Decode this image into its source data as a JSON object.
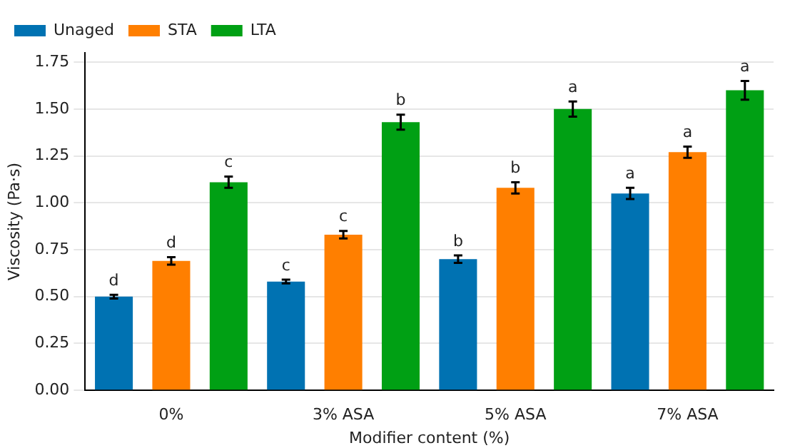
{
  "chart_data": {
    "type": "bar",
    "xlabel": "Modifier content (%)",
    "ylabel": "Viscosity (Pa·s)",
    "categories": [
      "0%",
      "3% ASA",
      "5% ASA",
      "7% ASA"
    ],
    "series": [
      {
        "name": "Unaged",
        "color": "#0072b2",
        "values": [
          0.5,
          0.58,
          0.7,
          1.05
        ],
        "errors": [
          0.01,
          0.01,
          0.02,
          0.03
        ],
        "value_labels": [
          "d",
          "c",
          "b",
          "a"
        ]
      },
      {
        "name": "STA",
        "color": "#ff7f00",
        "values": [
          0.69,
          0.83,
          1.08,
          1.27
        ],
        "errors": [
          0.02,
          0.02,
          0.03,
          0.03
        ],
        "value_labels": [
          "d",
          "c",
          "b",
          "a"
        ]
      },
      {
        "name": "LTA",
        "color": "#00a014",
        "values": [
          1.11,
          1.43,
          1.5,
          1.6
        ],
        "errors": [
          0.03,
          0.04,
          0.04,
          0.05
        ],
        "value_labels": [
          "c",
          "b",
          "a",
          "a"
        ]
      }
    ],
    "ylim": [
      0,
      1.8
    ],
    "yticks": [
      {
        "value": 0,
        "label": "0.00"
      },
      {
        "value": 0.25,
        "label": "0.25"
      },
      {
        "value": 0.5,
        "label": "0.50"
      },
      {
        "value": 0.75,
        "label": "0.75"
      },
      {
        "value": 1,
        "label": "1.00"
      },
      {
        "value": 1.25,
        "label": "1.25"
      },
      {
        "value": 1.5,
        "label": "1.50"
      },
      {
        "value": 1.75,
        "label": "1.75"
      }
    ],
    "grid": "y",
    "legend": "top left"
  }
}
